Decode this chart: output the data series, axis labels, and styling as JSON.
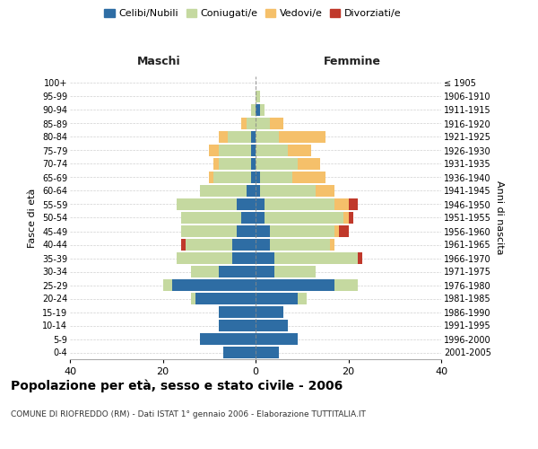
{
  "age_groups": [
    "0-4",
    "5-9",
    "10-14",
    "15-19",
    "20-24",
    "25-29",
    "30-34",
    "35-39",
    "40-44",
    "45-49",
    "50-54",
    "55-59",
    "60-64",
    "65-69",
    "70-74",
    "75-79",
    "80-84",
    "85-89",
    "90-94",
    "95-99",
    "100+"
  ],
  "birth_years": [
    "2001-2005",
    "1996-2000",
    "1991-1995",
    "1986-1990",
    "1981-1985",
    "1976-1980",
    "1971-1975",
    "1966-1970",
    "1961-1965",
    "1956-1960",
    "1951-1955",
    "1946-1950",
    "1941-1945",
    "1936-1940",
    "1931-1935",
    "1926-1930",
    "1921-1925",
    "1916-1920",
    "1911-1915",
    "1906-1910",
    "≤ 1905"
  ],
  "male": {
    "celibe": [
      7,
      12,
      8,
      8,
      13,
      18,
      8,
      5,
      5,
      4,
      3,
      4,
      2,
      1,
      1,
      1,
      1,
      0,
      0,
      0,
      0
    ],
    "coniugato": [
      0,
      0,
      0,
      0,
      1,
      2,
      6,
      12,
      10,
      12,
      13,
      13,
      10,
      8,
      7,
      7,
      5,
      2,
      1,
      0,
      0
    ],
    "vedovo": [
      0,
      0,
      0,
      0,
      0,
      0,
      0,
      0,
      0,
      0,
      0,
      0,
      0,
      1,
      1,
      2,
      2,
      1,
      0,
      0,
      0
    ],
    "divorziato": [
      0,
      0,
      0,
      0,
      0,
      0,
      0,
      0,
      1,
      0,
      0,
      0,
      0,
      0,
      0,
      0,
      0,
      0,
      0,
      0,
      0
    ]
  },
  "female": {
    "nubile": [
      5,
      9,
      7,
      6,
      9,
      17,
      4,
      4,
      3,
      3,
      2,
      2,
      1,
      1,
      0,
      0,
      0,
      0,
      1,
      0,
      0
    ],
    "coniugata": [
      0,
      0,
      0,
      0,
      2,
      5,
      9,
      18,
      13,
      14,
      17,
      15,
      12,
      7,
      9,
      7,
      5,
      3,
      1,
      1,
      0
    ],
    "vedova": [
      0,
      0,
      0,
      0,
      0,
      0,
      0,
      0,
      1,
      1,
      1,
      3,
      4,
      7,
      5,
      5,
      10,
      3,
      0,
      0,
      0
    ],
    "divorziata": [
      0,
      0,
      0,
      0,
      0,
      0,
      0,
      1,
      0,
      2,
      1,
      2,
      0,
      0,
      0,
      0,
      0,
      0,
      0,
      0,
      0
    ]
  },
  "colors": {
    "celibe": "#2E6DA4",
    "coniugato": "#C5D9A0",
    "vedovo": "#F5C06A",
    "divorziato": "#C0392B"
  },
  "legend_labels": [
    "Celibi/Nubili",
    "Coniugati/e",
    "Vedovi/e",
    "Divorziati/e"
  ],
  "title": "Popolazione per età, sesso e stato civile - 2006",
  "subtitle": "COMUNE DI RIOFREDDO (RM) - Dati ISTAT 1° gennaio 2006 - Elaborazione TUTTITALIA.IT",
  "xlabel_left": "Maschi",
  "xlabel_right": "Femmine",
  "ylabel_left": "Fasce di età",
  "ylabel_right": "Anni di nascita",
  "xlim": 40,
  "background_color": "#ffffff",
  "grid_color": "#cccccc"
}
